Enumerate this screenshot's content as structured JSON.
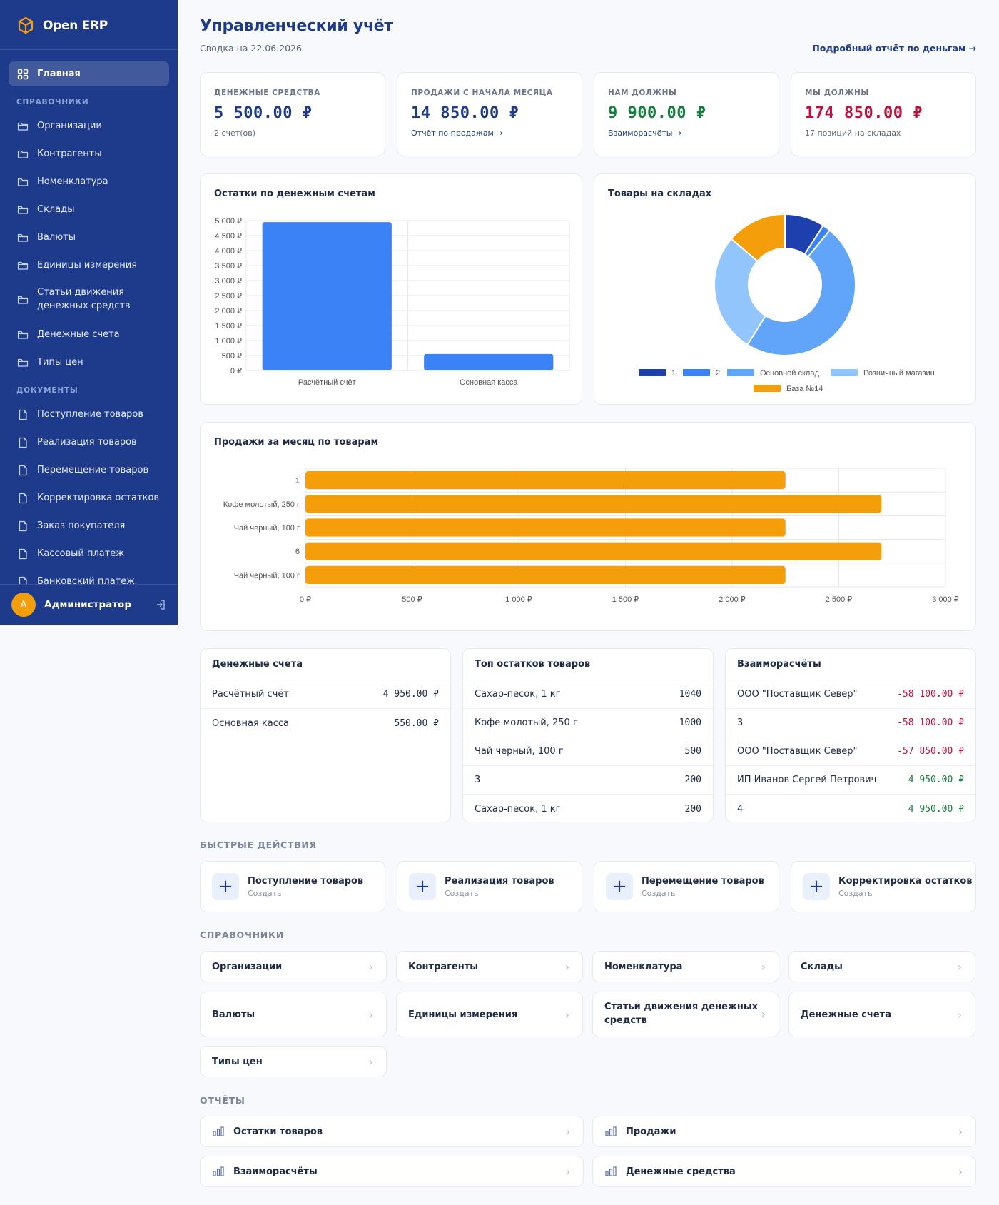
{
  "app": {
    "name": "Open ERP"
  },
  "sidebar": {
    "home": "Главная",
    "section_refs": "СПРАВОЧНИКИ",
    "refs": [
      "Организации",
      "Контрагенты",
      "Номенклатура",
      "Склады",
      "Валюты",
      "Единицы измерения",
      "Статьи движения денежных средств",
      "Денежные счета",
      "Типы цен"
    ],
    "section_docs": "ДОКУМЕНТЫ",
    "docs": [
      "Поступление товаров",
      "Реализация товаров",
      "Перемещение товаров",
      "Корректировка остатков",
      "Заказ покупателя",
      "Кассовый платеж",
      "Банковский платеж"
    ],
    "user_initial": "А",
    "user_name": "Администратор"
  },
  "header": {
    "title": "Управленческий учёт",
    "subtitle": "Сводка на 22.06.2026",
    "link": "Подробный отчёт по деньгам →"
  },
  "kpis": [
    {
      "label": "ДЕНЕЖНЫЕ СРЕДСТВА",
      "value": "5 500.00 ₽",
      "sub": "2 счет(ов)",
      "color": "#1e3a8a"
    },
    {
      "label": "ПРОДАЖИ С НАЧАЛА МЕСЯЦА",
      "value": "14 850.00 ₽",
      "sub": "Отчёт по продажам →",
      "color": "#1e3a8a"
    },
    {
      "label": "НАМ ДОЛЖНЫ",
      "value": "9 900.00 ₽",
      "sub": "Взаиморасчёты →",
      "color": "#15803d"
    },
    {
      "label": "МЫ ДОЛЖНЫ",
      "value": "174 850.00 ₽",
      "sub": "17 позиций на складах",
      "color": "#be123c"
    }
  ],
  "chart_data": [
    {
      "type": "bar",
      "title": "Остатки по денежным счетам",
      "categories": [
        "Расчётный счёт",
        "Основная касса"
      ],
      "values": [
        4950,
        550
      ],
      "ylim": [
        0,
        5000
      ],
      "yticks": [
        "0 ₽",
        "500 ₽",
        "1 000 ₽",
        "1 500 ₽",
        "2 000 ₽",
        "2 500 ₽",
        "3 000 ₽",
        "3 500 ₽",
        "4 000 ₽",
        "4 500 ₽",
        "5 000 ₽"
      ],
      "grid": true,
      "color": "#3b82f6"
    },
    {
      "type": "pie",
      "title": "Товары на складах",
      "labels": [
        "1",
        "2",
        "Основной склад",
        "Розничный магазин",
        "База №14"
      ],
      "values": [
        200,
        40,
        1050,
        600,
        300
      ],
      "colors": [
        "#1e40af",
        "#3b82f6",
        "#60a5fa",
        "#93c5fd",
        "#f59e0b"
      ],
      "legend": "bottom"
    },
    {
      "type": "bar",
      "orientation": "horizontal",
      "title": "Продажи за месяц по товарам",
      "categories": [
        "1",
        "Кофе молотый, 250 г",
        "Чай черный, 100 г",
        "6",
        "Чай черный, 100 г"
      ],
      "values": [
        2250,
        2700,
        2250,
        2700,
        2250
      ],
      "xlim": [
        0,
        3000
      ],
      "xticks": [
        "0 ₽",
        "500 ₽",
        "1 000 ₽",
        "1 500 ₽",
        "2 000 ₽",
        "2 500 ₽",
        "3 000 ₽"
      ],
      "grid": true,
      "color": "#f59e0b"
    }
  ],
  "tables": [
    {
      "title": "Денежные счета",
      "rows": [
        {
          "name": "Расчётный счёт",
          "value": "4 950.00 ₽",
          "tone": ""
        },
        {
          "name": "Основная касса",
          "value": "550.00 ₽",
          "tone": ""
        }
      ]
    },
    {
      "title": "Топ остатков товаров",
      "rows": [
        {
          "name": "Сахар-песок, 1 кг",
          "value": "1040",
          "tone": ""
        },
        {
          "name": "Кофе молотый, 250 г",
          "value": "1000",
          "tone": ""
        },
        {
          "name": "Чай черный, 100 г",
          "value": "500",
          "tone": ""
        },
        {
          "name": "3",
          "value": "200",
          "tone": ""
        },
        {
          "name": "Сахар-песок, 1 кг",
          "value": "200",
          "tone": ""
        }
      ]
    },
    {
      "title": "Взаиморасчёты",
      "rows": [
        {
          "name": "ООО \"Поставщик Север\"",
          "value": "-58 100.00 ₽",
          "tone": "neg"
        },
        {
          "name": "3",
          "value": "-58 100.00 ₽",
          "tone": "neg"
        },
        {
          "name": "ООО \"Поставщик Север\"",
          "value": "-57 850.00 ₽",
          "tone": "neg"
        },
        {
          "name": "ИП Иванов Сергей Петрович",
          "value": "4 950.00 ₽",
          "tone": "pos"
        },
        {
          "name": "4",
          "value": "4 950.00 ₽",
          "tone": "pos"
        }
      ]
    }
  ],
  "quick_actions": {
    "title": "БЫСТРЫЕ ДЕЙСТВИЯ",
    "plus": "+",
    "items": [
      {
        "label": "Поступление товаров",
        "sub": "Создать"
      },
      {
        "label": "Реализация товаров",
        "sub": "Создать"
      },
      {
        "label": "Перемещение товаров",
        "sub": "Создать"
      },
      {
        "label": "Корректировка остатков",
        "sub": "Создать"
      }
    ]
  },
  "references": {
    "title": "СПРАВОЧНИКИ",
    "chevron": "›",
    "items": [
      "Организации",
      "Контрагенты",
      "Номенклатура",
      "Склады",
      "Валюты",
      "Единицы измерения",
      "Статьи движения денежных средств",
      "Денежные счета",
      "Типы цен"
    ]
  },
  "reports": {
    "title": "ОТЧЁТЫ",
    "chevron": "›",
    "items": [
      "Остатки товаров",
      "Продажи",
      "Взаиморасчёты",
      "Денежные средства"
    ]
  }
}
